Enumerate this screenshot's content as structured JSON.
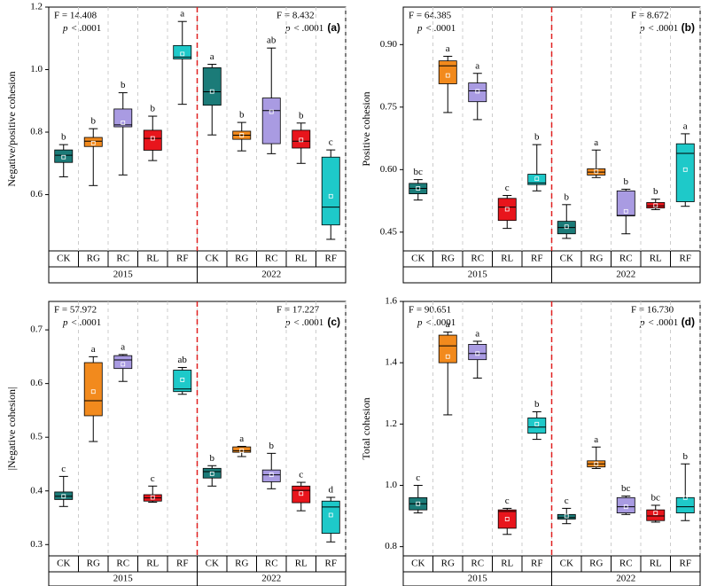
{
  "chart_data": [
    {
      "type": "box",
      "panel_label": "(a)",
      "ylabel": "Negative/positive cohesion",
      "ylim": [
        0.42,
        1.2
      ],
      "yticks": [
        0.6,
        0.8,
        {
          "value": 1.0,
          "label": "1.0"
        },
        1.2
      ],
      "colors": [
        "#1b7b78",
        "#f28a1d",
        "#a99be2",
        "#e8151c",
        "#1ec9c9"
      ],
      "annotations": [
        {
          "f": "F = 14.408",
          "p_symbol": "p",
          "p_text": "< .0001"
        },
        {
          "f": "F = 8.432",
          "p_symbol": "p",
          "p_text": "< .0001"
        }
      ],
      "groups": [
        {
          "name": "2015",
          "categories": [
            "CK",
            "RG",
            "RC",
            "RL",
            "RF"
          ],
          "boxes": [
            {
              "min": 0.657,
              "q1": 0.703,
              "median": 0.726,
              "q3": 0.743,
              "max": 0.76,
              "mean": 0.72,
              "label": "b"
            },
            {
              "min": 0.629,
              "q1": 0.754,
              "median": 0.771,
              "q3": 0.783,
              "max": 0.811,
              "mean": 0.765,
              "label": "b"
            },
            {
              "min": 0.663,
              "q1": 0.817,
              "median": 0.823,
              "q3": 0.874,
              "max": 0.926,
              "mean": 0.83,
              "label": "b"
            },
            {
              "min": 0.709,
              "q1": 0.742,
              "median": 0.78,
              "q3": 0.806,
              "max": 0.851,
              "mean": 0.78,
              "label": "b"
            },
            {
              "min": 0.889,
              "q1": 1.034,
              "median": 1.04,
              "q3": 1.077,
              "max": 1.154,
              "mean": 1.05,
              "label": "a"
            }
          ]
        },
        {
          "name": "2022",
          "categories": [
            "CK",
            "RG",
            "RC",
            "RL",
            "RF"
          ],
          "boxes": [
            {
              "min": 0.791,
              "q1": 0.886,
              "median": 0.929,
              "q3": 1.006,
              "max": 1.017,
              "mean": 0.93,
              "label": "a"
            },
            {
              "min": 0.74,
              "q1": 0.777,
              "median": 0.79,
              "q3": 0.803,
              "max": 0.831,
              "mean": 0.79,
              "label": "b"
            },
            {
              "min": 0.731,
              "q1": 0.763,
              "median": 0.869,
              "q3": 0.909,
              "max": 1.069,
              "mean": 0.865,
              "label": "ab"
            },
            {
              "min": 0.7,
              "q1": 0.749,
              "median": 0.771,
              "q3": 0.806,
              "max": 0.829,
              "mean": 0.775,
              "label": "b"
            },
            {
              "min": 0.457,
              "q1": 0.503,
              "median": 0.56,
              "q3": 0.72,
              "max": 0.743,
              "mean": 0.595,
              "label": "c"
            }
          ]
        }
      ]
    },
    {
      "type": "box",
      "panel_label": "(b)",
      "ylabel": "Positive cohesion",
      "ylim": [
        0.405,
        0.99
      ],
      "yticks": [
        {
          "value": 0.45,
          "label": "0.45"
        },
        {
          "value": 0.6,
          "label": "0.60"
        },
        {
          "value": 0.75,
          "label": "0.75"
        },
        {
          "value": 0.9,
          "label": "0.90"
        }
      ],
      "colors": [
        "#1b7b78",
        "#f28a1d",
        "#a99be2",
        "#e8151c",
        "#1ec9c9"
      ],
      "annotations": [
        {
          "f": "F = 64.385",
          "p_symbol": "p",
          "p_text": "< .0001"
        },
        {
          "f": "F = 8.672",
          "p_symbol": "p",
          "p_text": "< .0001"
        }
      ],
      "groups": [
        {
          "name": "2015",
          "categories": [
            "CK",
            "RG",
            "RC",
            "RL",
            "RF"
          ],
          "boxes": [
            {
              "min": 0.527,
              "q1": 0.542,
              "median": 0.555,
              "q3": 0.567,
              "max": 0.576,
              "mean": 0.555,
              "label": "bc"
            },
            {
              "min": 0.737,
              "q1": 0.806,
              "median": 0.849,
              "q3": 0.861,
              "max": 0.872,
              "mean": 0.826,
              "label": "a"
            },
            {
              "min": 0.72,
              "q1": 0.763,
              "median": 0.789,
              "q3": 0.808,
              "max": 0.831,
              "mean": 0.788,
              "label": "a"
            },
            {
              "min": 0.459,
              "q1": 0.478,
              "median": 0.51,
              "q3": 0.531,
              "max": 0.538,
              "mean": 0.505,
              "label": "c"
            },
            {
              "min": 0.549,
              "q1": 0.564,
              "median": 0.568,
              "q3": 0.589,
              "max": 0.66,
              "mean": 0.578,
              "label": "b"
            }
          ]
        },
        {
          "name": "2022",
          "categories": [
            "CK",
            "RG",
            "RC",
            "RL",
            "RF"
          ],
          "boxes": [
            {
              "min": 0.435,
              "q1": 0.446,
              "median": 0.461,
              "q3": 0.476,
              "max": 0.516,
              "mean": 0.463,
              "label": "b"
            },
            {
              "min": 0.581,
              "q1": 0.587,
              "median": 0.594,
              "q3": 0.602,
              "max": 0.647,
              "mean": 0.596,
              "label": "a"
            },
            {
              "min": 0.446,
              "q1": 0.489,
              "median": 0.49,
              "q3": 0.549,
              "max": 0.553,
              "mean": 0.5,
              "label": "b"
            },
            {
              "min": 0.504,
              "q1": 0.508,
              "median": 0.513,
              "q3": 0.521,
              "max": 0.529,
              "mean": 0.514,
              "label": "b"
            },
            {
              "min": 0.512,
              "q1": 0.523,
              "median": 0.639,
              "q3": 0.662,
              "max": 0.686,
              "mean": 0.6,
              "label": "a"
            }
          ]
        }
      ]
    },
    {
      "type": "box",
      "panel_label": "(c)",
      "ylabel": "|Negative cohesion|",
      "ylim": [
        0.279,
        0.753
      ],
      "yticks": [
        0.3,
        0.4,
        0.5,
        0.6,
        0.7
      ],
      "colors": [
        "#1b7b78",
        "#f28a1d",
        "#a99be2",
        "#e8151c",
        "#1ec9c9"
      ],
      "annotations": [
        {
          "f": "F = 57.972",
          "p_symbol": "p",
          "p_text": "< .0001"
        },
        {
          "f": "F = 17.227",
          "p_symbol": "p",
          "p_text": "< .0001"
        }
      ],
      "groups": [
        {
          "name": "2015",
          "categories": [
            "CK",
            "RG",
            "RC",
            "RL",
            "RF"
          ],
          "boxes": [
            {
              "min": 0.371,
              "q1": 0.384,
              "median": 0.39,
              "q3": 0.398,
              "max": 0.427,
              "mean": 0.39,
              "label": "c"
            },
            {
              "min": 0.492,
              "q1": 0.54,
              "median": 0.568,
              "q3": 0.639,
              "max": 0.65,
              "mean": 0.585,
              "label": "a"
            },
            {
              "min": 0.604,
              "q1": 0.628,
              "median": 0.644,
              "q3": 0.652,
              "max": 0.654,
              "mean": 0.636,
              "label": "a"
            },
            {
              "min": 0.379,
              "q1": 0.381,
              "median": 0.387,
              "q3": 0.393,
              "max": 0.409,
              "mean": 0.388,
              "label": "c"
            },
            {
              "min": 0.58,
              "q1": 0.585,
              "median": 0.59,
              "q3": 0.625,
              "max": 0.63,
              "mean": 0.607,
              "label": "ab"
            }
          ]
        },
        {
          "name": "2022",
          "categories": [
            "CK",
            "RG",
            "RC",
            "RL",
            "RF"
          ],
          "boxes": [
            {
              "min": 0.409,
              "q1": 0.424,
              "median": 0.436,
              "q3": 0.442,
              "max": 0.447,
              "mean": 0.432,
              "label": "b"
            },
            {
              "min": 0.464,
              "q1": 0.472,
              "median": 0.475,
              "q3": 0.482,
              "max": 0.483,
              "mean": 0.475,
              "label": "a"
            },
            {
              "min": 0.404,
              "q1": 0.417,
              "median": 0.43,
              "q3": 0.439,
              "max": 0.47,
              "mean": 0.43,
              "label": "b"
            },
            {
              "min": 0.363,
              "q1": 0.378,
              "median": 0.401,
              "q3": 0.409,
              "max": 0.416,
              "mean": 0.395,
              "label": "c"
            },
            {
              "min": 0.305,
              "q1": 0.321,
              "median": 0.37,
              "q3": 0.381,
              "max": 0.388,
              "mean": 0.355,
              "label": "d"
            }
          ]
        }
      ]
    },
    {
      "type": "box",
      "panel_label": "(d)",
      "ylabel": "Total cohesion",
      "ylim": [
        0.77,
        1.6
      ],
      "yticks": [
        {
          "value": 0.8,
          "label": "0.8"
        },
        {
          "value": 1.0,
          "label": "1.0"
        },
        {
          "value": 1.2,
          "label": "1.2"
        },
        {
          "value": 1.4,
          "label": "1.4"
        },
        {
          "value": 1.6,
          "label": "1.6"
        }
      ],
      "colors": [
        "#1b7b78",
        "#f28a1d",
        "#a99be2",
        "#e8151c",
        "#1ec9c9"
      ],
      "annotations": [
        {
          "f": "F = 90.651",
          "p_symbol": "p",
          "p_text": "< .0001"
        },
        {
          "f": "F = 16.730",
          "p_symbol": "p",
          "p_text": "< .0001"
        }
      ],
      "groups": [
        {
          "name": "2015",
          "categories": [
            "CK",
            "RG",
            "RC",
            "RL",
            "RF"
          ],
          "boxes": [
            {
              "min": 0.91,
              "q1": 0.92,
              "median": 0.94,
              "q3": 0.96,
              "max": 1.0,
              "mean": 0.94,
              "label": "c"
            },
            {
              "min": 1.23,
              "q1": 1.4,
              "median": 1.455,
              "q3": 1.49,
              "max": 1.5,
              "mean": 1.42,
              "label": "a"
            },
            {
              "min": 1.35,
              "q1": 1.41,
              "median": 1.43,
              "q3": 1.46,
              "max": 1.47,
              "mean": 1.43,
              "label": "a"
            },
            {
              "min": 0.84,
              "q1": 0.86,
              "median": 0.915,
              "q3": 0.92,
              "max": 0.925,
              "mean": 0.89,
              "label": "c"
            },
            {
              "min": 1.15,
              "q1": 1.17,
              "median": 1.19,
              "q3": 1.22,
              "max": 1.24,
              "mean": 1.2,
              "label": "b"
            }
          ]
        },
        {
          "name": "2022",
          "categories": [
            "CK",
            "RG",
            "RC",
            "RL",
            "RF"
          ],
          "boxes": [
            {
              "min": 0.875,
              "q1": 0.89,
              "median": 0.895,
              "q3": 0.905,
              "max": 0.925,
              "mean": 0.9,
              "label": "c"
            },
            {
              "min": 1.055,
              "q1": 1.06,
              "median": 1.07,
              "q3": 1.08,
              "max": 1.125,
              "mean": 1.07,
              "label": "a"
            },
            {
              "min": 0.905,
              "q1": 0.91,
              "median": 0.93,
              "q3": 0.96,
              "max": 0.965,
              "mean": 0.93,
              "label": "bc"
            },
            {
              "min": 0.88,
              "q1": 0.885,
              "median": 0.9,
              "q3": 0.92,
              "max": 0.935,
              "mean": 0.91,
              "label": "bc"
            },
            {
              "min": 0.885,
              "q1": 0.91,
              "median": 0.93,
              "q3": 0.96,
              "max": 1.07,
              "mean": 0.96,
              "label": "b"
            }
          ]
        }
      ]
    }
  ]
}
